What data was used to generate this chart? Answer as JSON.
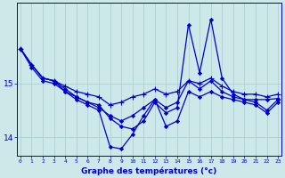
{
  "xlabel": "Graphe des températures (°c)",
  "x": [
    0,
    1,
    2,
    3,
    4,
    5,
    6,
    7,
    8,
    9,
    10,
    11,
    12,
    13,
    14,
    15,
    16,
    17,
    18,
    19,
    20,
    21,
    22,
    23
  ],
  "line_spike": [
    15.65,
    15.35,
    15.1,
    15.05,
    14.9,
    14.75,
    14.65,
    14.6,
    14.35,
    14.2,
    14.15,
    14.3,
    14.65,
    14.45,
    14.55,
    16.1,
    15.2,
    16.2,
    15.1,
    14.8,
    14.7,
    14.65,
    14.5,
    14.7
  ],
  "line_flat": [
    15.65,
    15.35,
    15.1,
    15.05,
    14.95,
    14.85,
    14.8,
    14.75,
    14.6,
    14.65,
    14.75,
    14.8,
    14.9,
    14.8,
    14.85,
    15.05,
    15.0,
    15.1,
    14.95,
    14.85,
    14.8,
    14.8,
    14.75,
    14.8
  ],
  "line_dip": [
    15.65,
    15.35,
    15.1,
    15.05,
    14.85,
    14.7,
    14.6,
    14.5,
    13.82,
    13.78,
    14.05,
    14.4,
    14.7,
    14.2,
    14.3,
    14.85,
    14.75,
    14.85,
    14.75,
    14.7,
    14.65,
    14.6,
    14.45,
    14.65
  ],
  "line_mid": [
    15.65,
    15.3,
    15.05,
    15.0,
    14.85,
    14.75,
    14.65,
    14.55,
    14.4,
    14.3,
    14.4,
    14.55,
    14.7,
    14.55,
    14.65,
    15.05,
    14.9,
    15.05,
    14.85,
    14.75,
    14.7,
    14.7,
    14.7,
    14.72
  ],
  "bg_color": "#cce8e8",
  "line_color": "#0000cc",
  "grid_color": "#aacccc",
  "axis_color": "#0000cc",
  "ylim_min": 13.65,
  "ylim_max": 16.5,
  "ytick_positions": [
    14.0,
    15.0
  ],
  "ytick_labels": [
    "14",
    "15"
  ],
  "xlim_min": -0.3,
  "xlim_max": 23.3
}
